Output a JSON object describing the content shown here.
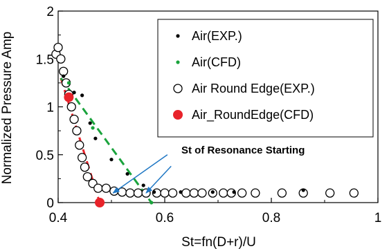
{
  "chart_data": {
    "type": "scatter",
    "xlabel": "St=fn(D+r)/U",
    "ylabel": "Normalized Pressure Amp",
    "xlim": [
      0.4,
      1.0
    ],
    "ylim": [
      0,
      2
    ],
    "xticks": [
      0.4,
      0.6,
      0.8,
      1
    ],
    "xtick_labels": [
      "0.4",
      "0.6",
      "0.8",
      "1"
    ],
    "yticks": [
      0,
      0.5,
      1,
      1.5,
      2
    ],
    "ytick_labels": [
      "0",
      "0.5",
      "1",
      "1.5",
      "2"
    ],
    "legend_position": "top-right",
    "series": [
      {
        "name": "Air(EXP.)",
        "marker": "small-dot",
        "color": "#000000",
        "points": [
          [
            0.41,
            1.32
          ],
          [
            0.43,
            1.15
          ],
          [
            0.445,
            1.12
          ],
          [
            0.46,
            0.83
          ],
          [
            0.47,
            0.67
          ],
          [
            0.5,
            0.45
          ],
          [
            0.53,
            0.3
          ],
          [
            0.56,
            0.18
          ],
          [
            0.58,
            0.11
          ],
          [
            0.63,
            0.11
          ],
          [
            0.69,
            0.11
          ],
          [
            0.73,
            0.11
          ],
          [
            0.86,
            0.13
          ]
        ]
      },
      {
        "name": "Air(CFD)",
        "marker": "small-dot",
        "color": "#1aa33c",
        "points": [
          [
            0.42,
            1.25
          ],
          [
            0.465,
            0.78
          ],
          [
            0.575,
            0.0
          ]
        ]
      },
      {
        "name": "Air Round Edge(EXP.)",
        "marker": "open-circle",
        "color": "#000000",
        "points": [
          [
            0.396,
            1.55
          ],
          [
            0.4,
            1.62
          ],
          [
            0.405,
            1.5
          ],
          [
            0.41,
            1.37
          ],
          [
            0.415,
            1.25
          ],
          [
            0.42,
            1.13
          ],
          [
            0.425,
            1.0
          ],
          [
            0.43,
            0.87
          ],
          [
            0.435,
            0.75
          ],
          [
            0.44,
            0.6
          ],
          [
            0.445,
            0.47
          ],
          [
            0.45,
            0.37
          ],
          [
            0.455,
            0.27
          ],
          [
            0.465,
            0.2
          ],
          [
            0.475,
            0.15
          ],
          [
            0.49,
            0.15
          ],
          [
            0.505,
            0.12
          ],
          [
            0.52,
            0.11
          ],
          [
            0.535,
            0.1
          ],
          [
            0.55,
            0.1
          ],
          [
            0.565,
            0.1
          ],
          [
            0.585,
            0.1
          ],
          [
            0.6,
            0.1
          ],
          [
            0.615,
            0.1
          ],
          [
            0.64,
            0.1
          ],
          [
            0.655,
            0.1
          ],
          [
            0.67,
            0.1
          ],
          [
            0.69,
            0.1
          ],
          [
            0.71,
            0.1
          ],
          [
            0.725,
            0.1
          ],
          [
            0.745,
            0.1
          ],
          [
            0.77,
            0.1
          ],
          [
            0.82,
            0.1
          ],
          [
            0.86,
            0.1
          ],
          [
            0.91,
            0.1
          ],
          [
            0.955,
            0.1
          ]
        ]
      },
      {
        "name": "Air_RoundEdge(CFD)",
        "marker": "filled-circle",
        "color": "#e8232a",
        "points": [
          [
            0.42,
            1.1
          ],
          [
            0.478,
            0.0
          ]
        ]
      }
    ],
    "trend_lines": [
      {
        "color": "#e8232a",
        "style": "dashed",
        "points": [
          [
            0.405,
            1.3
          ],
          [
            0.478,
            0.0
          ]
        ]
      },
      {
        "color": "#1aa33c",
        "style": "dashed",
        "points": [
          [
            0.405,
            1.3
          ],
          [
            0.575,
            0.0
          ]
        ]
      }
    ],
    "annotation": {
      "text": "St of Resonance Starting",
      "arrows": [
        {
          "from": [
            0.605,
            0.5
          ],
          "to": [
            0.503,
            0.1
          ]
        },
        {
          "from": [
            0.612,
            0.38
          ],
          "to": [
            0.565,
            0.1
          ]
        }
      ]
    }
  }
}
